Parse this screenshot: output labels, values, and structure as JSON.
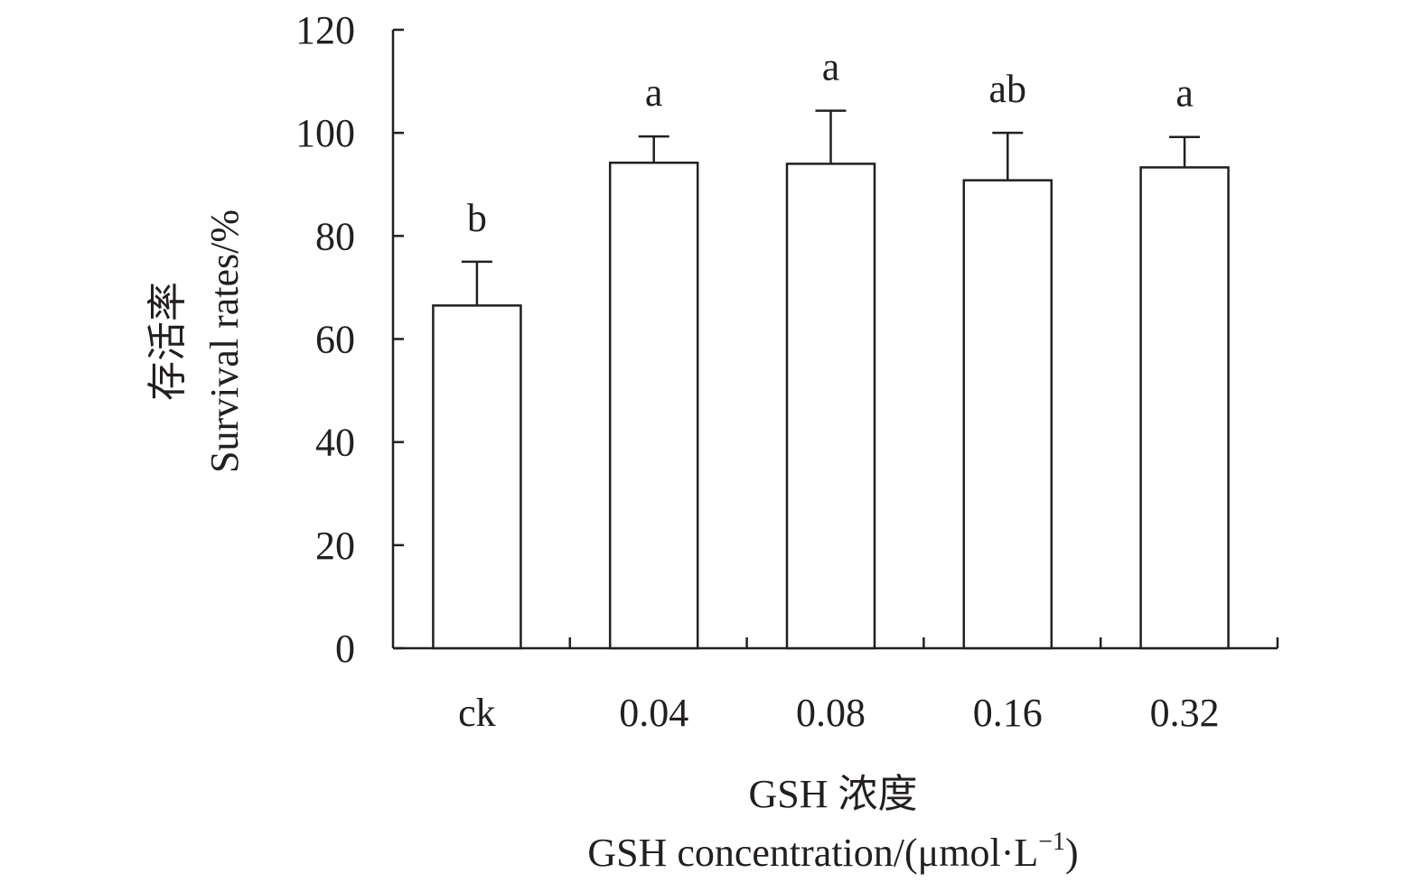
{
  "chart_data": {
    "type": "bar",
    "categories": [
      "ck",
      "0.04",
      "0.08",
      "0.16",
      "0.32"
    ],
    "values": [
      66.5,
      94.2,
      94.0,
      90.8,
      93.3
    ],
    "error_upper": [
      75.0,
      99.3,
      104.3,
      100.0,
      99.2
    ],
    "significance": [
      "b",
      "a",
      "a",
      "ab",
      "a"
    ],
    "ylim": [
      0,
      120
    ],
    "yticks": [
      0,
      20,
      40,
      60,
      80,
      100,
      120
    ],
    "ylabel_line1": "存活率",
    "ylabel_line2": "Survival rates/%",
    "xlabel_line1": "GSH 浓度",
    "xlabel_line2_main": "GSH concentration/(μmol·L",
    "xlabel_line2_sup": "−1",
    "xlabel_line2_end": ")",
    "grid": false,
    "bar_fill": "#ffffff",
    "stroke_color": "#231f20"
  }
}
